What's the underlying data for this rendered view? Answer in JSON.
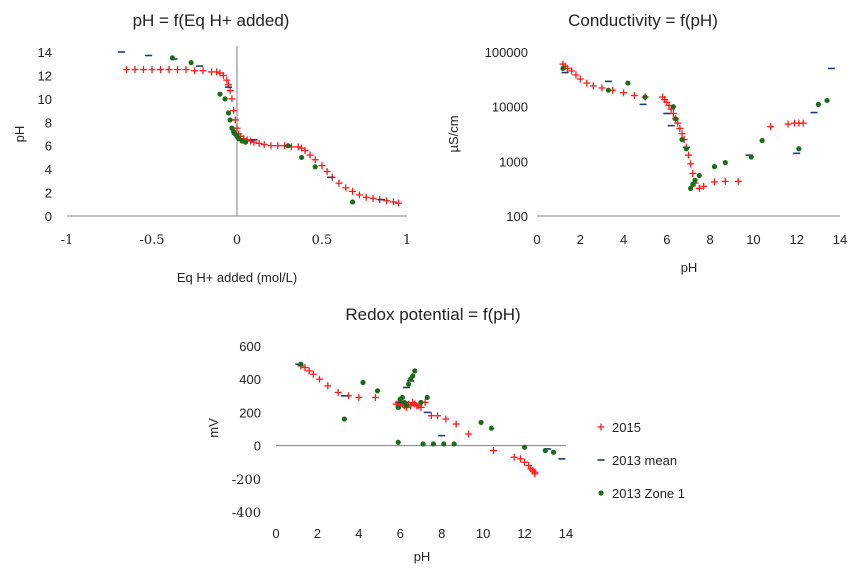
{
  "colors": {
    "s2015": "#ff1a1a",
    "s2013mean": "#1f3b6b",
    "s2013zone1": "#1a6b1a",
    "axis": "#808080"
  },
  "legend": {
    "placement": "right",
    "items": [
      {
        "label": "2015",
        "marker": "plus",
        "color": "#ff1a1a"
      },
      {
        "label": "2013 mean",
        "marker": "dash",
        "color": "#1f3b6b"
      },
      {
        "label": "2013 Zone 1",
        "marker": "dot",
        "color": "#1a6b1a"
      }
    ]
  },
  "chart_data": [
    {
      "type": "scatter",
      "title": "pH = f(Eq H+ added)",
      "xlabel": "Eq H+ added (mol/L)",
      "ylabel": "pH",
      "xlim": [
        -1,
        1
      ],
      "ylim": [
        0,
        14
      ],
      "xticks": [
        -1,
        -0.5,
        0,
        0.5,
        1
      ],
      "xtick_labels": [
        "-1",
        "-0.5",
        "0",
        "0.5",
        "1"
      ],
      "yticks": [
        0,
        2,
        4,
        6,
        8,
        10,
        12,
        14
      ],
      "ytick_labels": [
        "0",
        "2",
        "4",
        "6",
        "8",
        "10",
        "12",
        "14"
      ],
      "scale": "linear",
      "series": [
        {
          "name": "2015",
          "marker": "plus",
          "x": [
            -0.65,
            -0.6,
            -0.55,
            -0.5,
            -0.45,
            -0.4,
            -0.35,
            -0.3,
            -0.25,
            -0.2,
            -0.15,
            -0.12,
            -0.1,
            -0.08,
            -0.06,
            -0.05,
            -0.04,
            -0.03,
            -0.02,
            -0.01,
            0,
            0.01,
            0.02,
            0.04,
            0.06,
            0.08,
            0.1,
            0.13,
            0.16,
            0.2,
            0.24,
            0.28,
            0.32,
            0.36,
            0.38,
            0.4,
            0.43,
            0.46,
            0.5,
            0.53,
            0.56,
            0.6,
            0.64,
            0.68,
            0.72,
            0.76,
            0.8,
            0.84,
            0.88,
            0.92,
            0.95
          ],
          "y": [
            12.5,
            12.5,
            12.5,
            12.5,
            12.5,
            12.5,
            12.5,
            12.5,
            12.4,
            12.4,
            12.3,
            12.3,
            12.2,
            12.0,
            11.6,
            11.2,
            10.7,
            10.0,
            9.0,
            8.2,
            7.5,
            7.0,
            6.8,
            6.6,
            6.5,
            6.4,
            6.3,
            6.2,
            6.1,
            6.0,
            6.0,
            6.0,
            5.9,
            5.9,
            5.8,
            5.6,
            5.2,
            4.8,
            4.3,
            3.8,
            3.3,
            2.8,
            2.4,
            2.1,
            1.8,
            1.6,
            1.5,
            1.4,
            1.3,
            1.2,
            1.1
          ]
        },
        {
          "name": "2013 mean",
          "marker": "dash",
          "x": [
            -0.68,
            -0.52,
            -0.37,
            -0.22,
            -0.05,
            -0.01,
            0.1,
            0.3,
            0.55,
            0.85
          ],
          "y": [
            14.0,
            13.7,
            13.4,
            12.8,
            11.0,
            7.0,
            6.5,
            6.0,
            3.3,
            1.4
          ]
        },
        {
          "name": "2013 Zone 1",
          "marker": "dot",
          "x": [
            -0.38,
            -0.27,
            -0.1,
            -0.07,
            -0.05,
            -0.04,
            -0.03,
            -0.02,
            -0.01,
            0,
            0.01,
            0.03,
            0.05,
            0.3,
            0.38,
            0.46,
            0.68
          ],
          "y": [
            13.5,
            13.1,
            10.4,
            10.0,
            8.8,
            8.2,
            7.5,
            7.2,
            7.0,
            6.8,
            6.6,
            6.4,
            6.3,
            6.0,
            5.0,
            4.2,
            1.2
          ]
        }
      ]
    },
    {
      "type": "scatter",
      "title": "Conductivity = f(pH)",
      "xlabel": "pH",
      "ylabel": "µS/cm",
      "xlim": [
        0,
        14
      ],
      "ylim": [
        100,
        100000
      ],
      "xticks": [
        0,
        2,
        4,
        6,
        8,
        10,
        12,
        14
      ],
      "xtick_labels": [
        "0",
        "2",
        "4",
        "6",
        "8",
        "10",
        "12",
        "14"
      ],
      "yticks": [
        100,
        1000,
        10000,
        100000
      ],
      "ytick_labels": [
        "100",
        "1000",
        "10000",
        "100000"
      ],
      "scale": "log-y",
      "series": [
        {
          "name": "2015",
          "marker": "plus",
          "x": [
            1.2,
            1.3,
            1.4,
            1.6,
            1.8,
            2.0,
            2.3,
            2.6,
            3.0,
            3.5,
            4.0,
            4.5,
            5.0,
            5.8,
            5.9,
            6.0,
            6.1,
            6.2,
            6.3,
            6.4,
            6.5,
            6.6,
            6.7,
            6.8,
            6.9,
            7.0,
            7.1,
            7.2,
            7.3,
            7.5,
            7.7,
            8.2,
            8.7,
            9.3,
            10.8,
            11.6,
            11.9,
            12.1,
            12.3
          ],
          "y": [
            60000,
            55000,
            50000,
            45000,
            38000,
            32000,
            27000,
            24000,
            22000,
            20000,
            18000,
            16000,
            15000,
            15000,
            13500,
            12000,
            10500,
            9000,
            7500,
            6000,
            5000,
            4000,
            3200,
            2500,
            1800,
            1300,
            900,
            600,
            400,
            320,
            350,
            420,
            430,
            430,
            4300,
            4800,
            5000,
            5000,
            5000
          ]
        },
        {
          "name": "2013 mean",
          "marker": "dash",
          "x": [
            1.3,
            3.3,
            4.9,
            6.0,
            6.2,
            6.9,
            9.8,
            12.0,
            12.8,
            13.6
          ],
          "y": [
            42000,
            29000,
            11000,
            7500,
            4500,
            1800,
            1300,
            1400,
            7800,
            50000
          ]
        },
        {
          "name": "2013 Zone 1",
          "marker": "dot",
          "x": [
            1.2,
            3.3,
            4.2,
            5.0,
            6.3,
            6.4,
            6.7,
            6.9,
            7.1,
            7.2,
            7.3,
            7.5,
            8.2,
            8.7,
            9.9,
            10.4,
            12.1,
            13.0,
            13.4
          ],
          "y": [
            50000,
            20000,
            27000,
            15000,
            10000,
            6000,
            2500,
            1700,
            320,
            380,
            450,
            550,
            800,
            950,
            1200,
            2400,
            1700,
            11000,
            13000
          ]
        }
      ]
    },
    {
      "type": "scatter",
      "title": "Redox potential = f(pH)",
      "xlabel": "pH",
      "ylabel": "mV",
      "xlim": [
        0,
        14
      ],
      "ylim": [
        -400,
        600
      ],
      "xticks": [
        0,
        2,
        4,
        6,
        8,
        10,
        12,
        14
      ],
      "xtick_labels": [
        "0",
        "2",
        "4",
        "6",
        "8",
        "10",
        "12",
        "14"
      ],
      "yticks": [
        -400,
        -200,
        0,
        200,
        400,
        600
      ],
      "ytick_labels": [
        "-400",
        "-200",
        "0",
        "200",
        "400",
        "600"
      ],
      "scale": "linear",
      "series": [
        {
          "name": "2015",
          "marker": "plus",
          "x": [
            1.2,
            1.4,
            1.6,
            1.8,
            2.1,
            2.5,
            3.0,
            3.5,
            4.0,
            4.8,
            5.8,
            5.9,
            6.0,
            6.1,
            6.2,
            6.3,
            6.4,
            6.5,
            6.6,
            6.7,
            6.8,
            6.9,
            7.0,
            7.2,
            7.5,
            7.8,
            8.2,
            8.7,
            9.3,
            10.5,
            11.5,
            11.8,
            12.0,
            12.2,
            12.3,
            12.4,
            12.5,
            12.5
          ],
          "y": [
            480,
            470,
            450,
            430,
            400,
            360,
            320,
            300,
            290,
            290,
            250,
            260,
            240,
            250,
            240,
            230,
            250,
            240,
            260,
            250,
            240,
            240,
            230,
            260,
            180,
            180,
            160,
            130,
            70,
            -30,
            -70,
            -80,
            -100,
            -120,
            -140,
            -150,
            -160,
            -170
          ]
        },
        {
          "name": "2013 mean",
          "marker": "dash",
          "x": [
            1.1,
            3.3,
            6.0,
            6.2,
            6.3,
            6.5,
            7.3,
            8.0,
            13.1,
            13.8
          ],
          "y": [
            490,
            300,
            260,
            260,
            350,
            390,
            200,
            60,
            -20,
            -80
          ]
        },
        {
          "name": "2013 Zone 1",
          "marker": "dot",
          "x": [
            1.2,
            3.3,
            4.2,
            4.9,
            5.9,
            5.9,
            6.0,
            6.1,
            6.2,
            6.3,
            6.4,
            6.5,
            6.6,
            6.7,
            7.0,
            7.1,
            7.3,
            7.6,
            8.1,
            8.6,
            9.9,
            10.4,
            12.0,
            13.0,
            13.4
          ],
          "y": [
            490,
            160,
            380,
            330,
            230,
            20,
            280,
            290,
            260,
            240,
            370,
            400,
            420,
            450,
            260,
            10,
            290,
            10,
            10,
            10,
            140,
            105,
            -10,
            -30,
            -40
          ]
        }
      ]
    }
  ]
}
